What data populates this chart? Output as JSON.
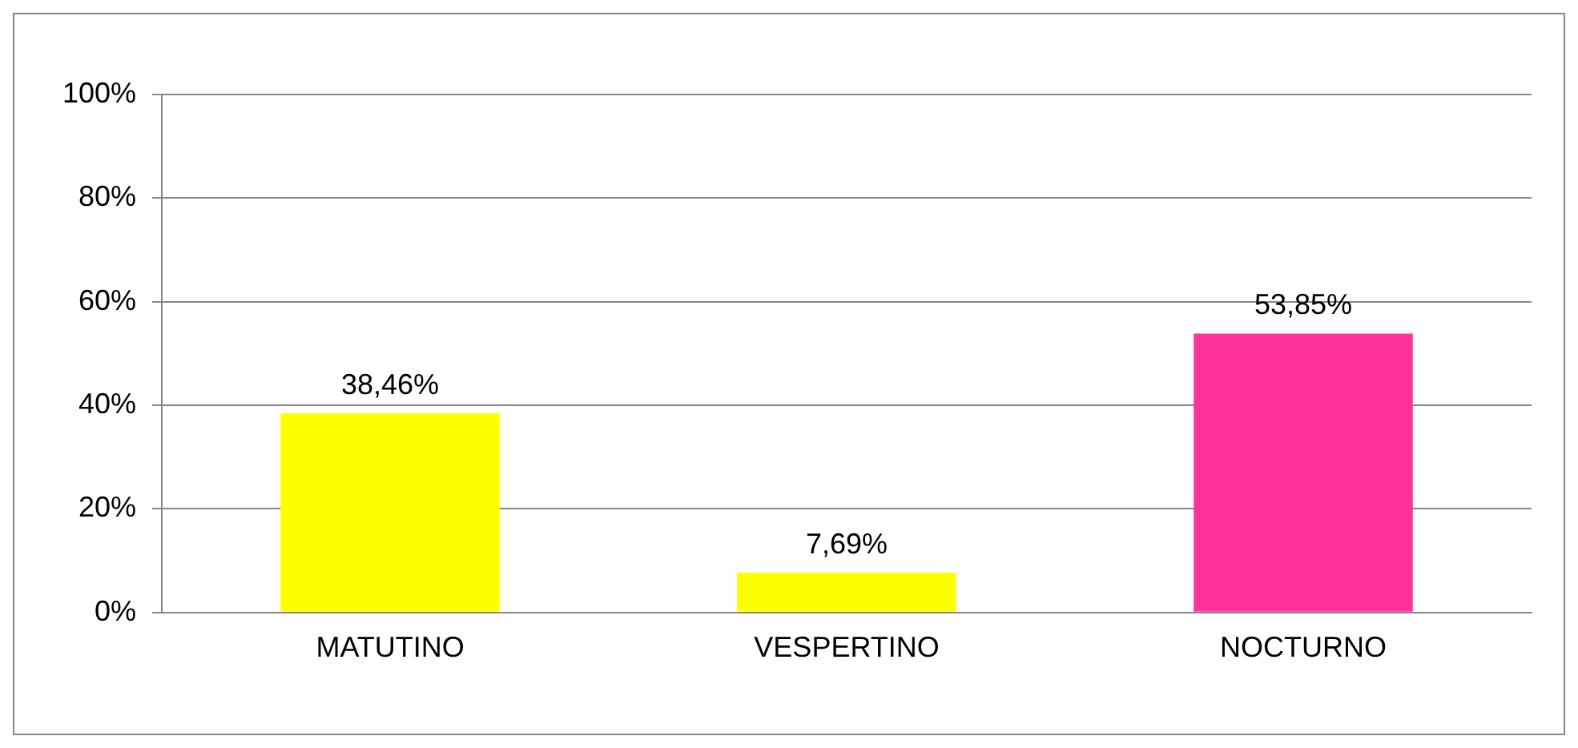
{
  "chart_data": {
    "type": "bar",
    "categories": [
      "MATUTINO",
      "VESPERTINO",
      "NOCTURNO"
    ],
    "values": [
      38.46,
      7.69,
      53.85
    ],
    "colors": [
      "#ffff00",
      "#ffff00",
      "#ff3399"
    ],
    "value_labels": [
      "38,46%",
      "7,69%",
      "53,85%"
    ],
    "ylim": [
      0,
      100
    ],
    "yticks": [
      {
        "value": 0,
        "label": "0%"
      },
      {
        "value": 20,
        "label": "20%"
      },
      {
        "value": 40,
        "label": "40%"
      },
      {
        "value": 60,
        "label": "60%"
      },
      {
        "value": 80,
        "label": "80%"
      },
      {
        "value": 100,
        "label": "100%"
      }
    ],
    "grid": "y",
    "legend": false
  }
}
